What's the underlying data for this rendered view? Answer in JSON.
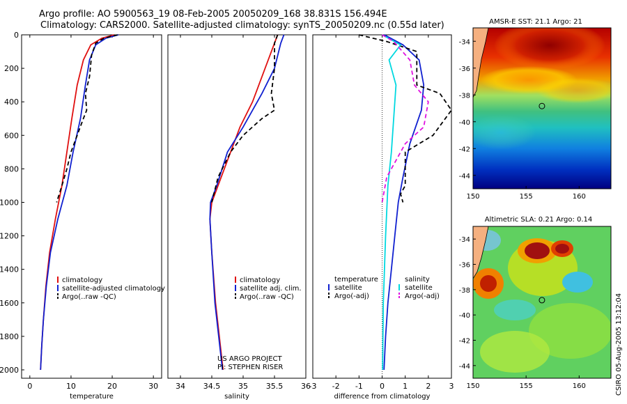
{
  "title": {
    "line1": "Argo profile: AO 5900563_19 08-Feb-2005 20050209_168 38.831S 156.494E",
    "line2": "Climatology: CARS2000. Satellite-adjusted climatology: synTS_20050209.nc (0.55d later)"
  },
  "credit": {
    "line1": "US ARGO PROJECT",
    "line2": "PI: STEPHEN RISER"
  },
  "stamp": "CSIRO 05-Aug-2005 13:12:04",
  "colors": {
    "clim": "#e01010",
    "sat": "#1020d0",
    "argo": "#000000",
    "sal": "#00d8e0",
    "argo_sal": "#e010e0"
  },
  "chart_data": [
    {
      "id": "temperature",
      "type": "line",
      "xlabel": "temperature",
      "ylabel": "",
      "xlim": [
        -2,
        32
      ],
      "ylim": [
        2050,
        0
      ],
      "xticks": [
        "0",
        "10",
        "20",
        "30"
      ],
      "xtick_values": [
        0,
        10,
        20,
        30
      ],
      "yticks": [
        "0",
        "200",
        "400",
        "600",
        "800",
        "1000",
        "1200",
        "1400",
        "1600",
        "1800",
        "2000"
      ],
      "ytick_values": [
        0,
        200,
        400,
        600,
        800,
        1000,
        1200,
        1400,
        1600,
        1800,
        2000
      ],
      "legend": {
        "entries": [
          "climatology",
          "satellite-adjusted climatology",
          "Argo(..raw -QC)"
        ],
        "placement": "lower-right"
      },
      "series": [
        {
          "name": "climatology",
          "color": "clim",
          "dash": false,
          "x": [
            20.5,
            17.5,
            14.8,
            13.0,
            11.5,
            10.2,
            9.0,
            7.8,
            6.2,
            4.8,
            3.9,
            3.3,
            2.9,
            2.6
          ],
          "y": [
            0,
            20,
            60,
            150,
            300,
            500,
            700,
            900,
            1100,
            1300,
            1500,
            1700,
            1850,
            2000
          ]
        },
        {
          "name": "satellite-adjusted climatology",
          "color": "sat",
          "dash": false,
          "x": [
            21.5,
            18.5,
            16.0,
            14.5,
            13.5,
            12.3,
            10.5,
            9.0,
            6.8,
            5.0,
            4.0,
            3.3,
            2.9,
            2.6
          ],
          "y": [
            0,
            20,
            60,
            150,
            300,
            500,
            700,
            900,
            1100,
            1300,
            1500,
            1700,
            1850,
            2000
          ]
        },
        {
          "name": "Argo(..raw -QC)",
          "color": "argo",
          "dash": true,
          "x": [
            21.3,
            18.0,
            16.0,
            15.0,
            14.5,
            13.5,
            13.8,
            13.0,
            11.5,
            10.0,
            9.0,
            7.8,
            6.5
          ],
          "y": [
            0,
            20,
            50,
            120,
            250,
            350,
            450,
            500,
            600,
            700,
            800,
            900,
            1000
          ]
        }
      ]
    },
    {
      "id": "salinity",
      "type": "line",
      "xlabel": "salinity",
      "ylabel": "",
      "xlim": [
        33.8,
        36.0
      ],
      "ylim": [
        2050,
        0
      ],
      "xticks": [
        "34",
        "34.5",
        "35",
        "35.5",
        "36"
      ],
      "xtick_values": [
        34,
        34.5,
        35,
        35.5,
        36
      ],
      "legend": {
        "entries": [
          "climatology",
          "satellite adj. clim.",
          "Argo(..raw -QC)"
        ],
        "placement": "lower-right"
      },
      "series": [
        {
          "name": "climatology",
          "color": "clim",
          "dash": false,
          "x": [
            35.55,
            35.5,
            35.35,
            35.15,
            34.95,
            34.8,
            34.6,
            34.5,
            34.47,
            34.5,
            34.56,
            34.62,
            34.68
          ],
          "y": [
            0,
            50,
            200,
            400,
            550,
            700,
            900,
            1000,
            1100,
            1300,
            1600,
            1800,
            2000
          ]
        },
        {
          "name": "satellite adj. clim.",
          "color": "sat",
          "dash": false,
          "x": [
            35.65,
            35.6,
            35.5,
            35.3,
            35.0,
            34.75,
            34.58,
            34.48,
            34.47,
            34.5,
            34.55,
            34.61,
            34.67
          ],
          "y": [
            0,
            50,
            200,
            350,
            550,
            700,
            900,
            1000,
            1100,
            1300,
            1600,
            1800,
            2000
          ]
        },
        {
          "name": "Argo(..raw -QC)",
          "color": "argo",
          "dash": true,
          "x": [
            35.55,
            35.5,
            35.5,
            35.45,
            35.5,
            35.3,
            35.0,
            34.8,
            34.6,
            34.5
          ],
          "y": [
            0,
            50,
            200,
            350,
            450,
            500,
            600,
            700,
            850,
            1000
          ]
        }
      ]
    },
    {
      "id": "difference",
      "type": "line",
      "xlabel": "difference from climatology",
      "ylabel": "",
      "xlim": [
        -3,
        3
      ],
      "ylim": [
        2050,
        0
      ],
      "xticks": [
        "-3",
        "-2",
        "-1",
        "0",
        "1",
        "2",
        "3"
      ],
      "xtick_values": [
        -3,
        -2,
        -1,
        0,
        1,
        2,
        3
      ],
      "legend": {
        "temperature_header": "temperature",
        "salinity_header": "salinity",
        "entries": [
          "satellite",
          "Argo(-adj)",
          "satellite",
          "Argo(-adj)"
        ],
        "placement": "lower"
      },
      "series": [
        {
          "name": "temperature satellite",
          "color": "sat",
          "dash": false,
          "x": [
            0.1,
            0.9,
            1.6,
            1.8,
            1.7,
            1.2,
            0.9,
            0.7,
            0.55,
            0.4,
            0.25,
            0.15,
            0.08
          ],
          "y": [
            0,
            60,
            150,
            300,
            450,
            650,
            850,
            1000,
            1200,
            1400,
            1600,
            1800,
            2000
          ]
        },
        {
          "name": "temperature Argo(-adj)",
          "color": "argo",
          "dash": true,
          "x": [
            -1.0,
            0.2,
            1.5,
            1.5,
            2.5,
            3.0,
            2.2,
            1.0,
            1.0,
            0.8,
            0.9
          ],
          "y": [
            0,
            40,
            100,
            300,
            350,
            450,
            600,
            700,
            900,
            950,
            1000
          ]
        },
        {
          "name": "salinity satellite",
          "color": "sal",
          "dash": false,
          "x": [
            0.0,
            0.8,
            0.3,
            0.6,
            0.5,
            0.4,
            0.25,
            0.15,
            0.05,
            0.02
          ],
          "y": [
            0,
            60,
            150,
            300,
            500,
            700,
            900,
            1200,
            1600,
            2000
          ]
        },
        {
          "name": "salinity Argo(-adj)",
          "color": "argo_sal",
          "dash": true,
          "x": [
            0.0,
            0.5,
            1.2,
            1.4,
            2.0,
            1.8,
            1.0,
            0.2,
            0.0
          ],
          "y": [
            0,
            40,
            150,
            300,
            400,
            550,
            650,
            850,
            1000
          ]
        }
      ]
    }
  ],
  "maps": [
    {
      "id": "sst-map",
      "title": "AMSR-E SST: 21.1 Argo: 21",
      "xticks": [
        "150",
        "155",
        "160"
      ],
      "xtick_values": [
        150,
        155,
        160
      ],
      "yticks": [
        "-34",
        "-36",
        "-38",
        "-40",
        "-42",
        "-44"
      ],
      "ytick_values": [
        -34,
        -36,
        -38,
        -40,
        -42,
        -44
      ],
      "lon_range": [
        150,
        163
      ],
      "lat_range": [
        -45,
        -33
      ],
      "argo_point": {
        "lon": 156.494,
        "lat": -38.831
      }
    },
    {
      "id": "sla-map",
      "title": "Altimetric SLA: 0.21 Argo: 0.14",
      "xticks": [
        "150",
        "155",
        "160"
      ],
      "xtick_values": [
        150,
        155,
        160
      ],
      "yticks": [
        "-34",
        "-36",
        "-38",
        "-40",
        "-42",
        "-44"
      ],
      "ytick_values": [
        -34,
        -36,
        -38,
        -40,
        -42,
        -44
      ],
      "lon_range": [
        150,
        163
      ],
      "lat_range": [
        -45,
        -33
      ],
      "argo_point": {
        "lon": 156.494,
        "lat": -38.831
      }
    }
  ]
}
